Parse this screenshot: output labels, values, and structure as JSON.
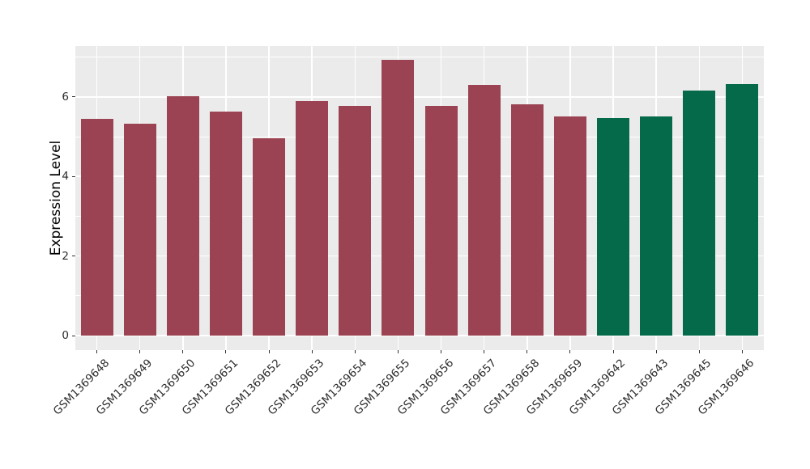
{
  "chart_data": {
    "type": "bar",
    "title": "",
    "xlabel": "",
    "ylabel": "Expression Level",
    "categories": [
      "GSM1369648",
      "GSM1369649",
      "GSM1369650",
      "GSM1369651",
      "GSM1369652",
      "GSM1369653",
      "GSM1369654",
      "GSM1369655",
      "GSM1369656",
      "GSM1369657",
      "GSM1369658",
      "GSM1369659",
      "GSM1369642",
      "GSM1369643",
      "GSM1369645",
      "GSM1369646"
    ],
    "values": [
      5.45,
      5.33,
      6.01,
      5.64,
      4.97,
      5.89,
      5.77,
      6.93,
      5.78,
      6.3,
      5.82,
      5.51,
      5.48,
      5.51,
      6.17,
      6.33
    ],
    "bar_colors": [
      "#9B4352",
      "#9B4352",
      "#9B4352",
      "#9B4352",
      "#9B4352",
      "#9B4352",
      "#9B4352",
      "#9B4352",
      "#9B4352",
      "#9B4352",
      "#9B4352",
      "#9B4352",
      "#046A49",
      "#046A49",
      "#046A49",
      "#046A49"
    ],
    "color_groups": {
      "maroon": "#9B4352",
      "green": "#046A49"
    },
    "ylim": [
      0,
      7.28
    ],
    "yticks_major": [
      0,
      2,
      4,
      6
    ],
    "yticks_minor": [
      1,
      3,
      5,
      7
    ],
    "grid": true,
    "legend_position": "none",
    "panel_background": "#EBEBEB",
    "gridline_color": "#FFFFFF"
  }
}
